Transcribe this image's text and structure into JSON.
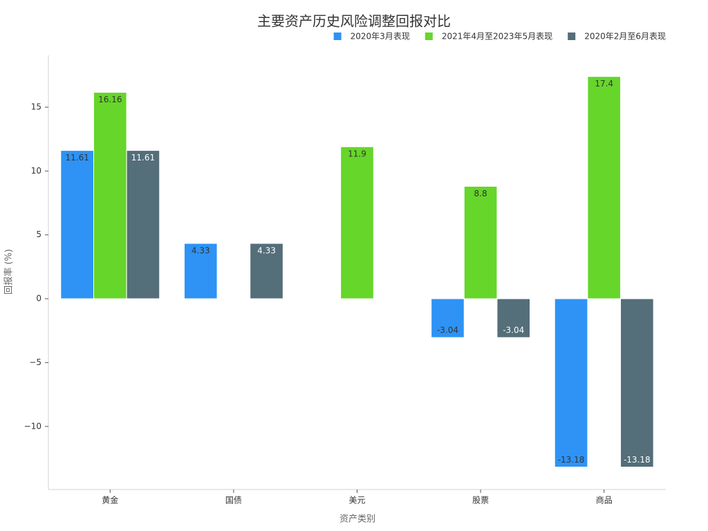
{
  "chart_data": {
    "type": "bar",
    "title": "主要资产历史风险调整回报对比",
    "x_label": "资产类别",
    "y_label": "回报率 (%)",
    "categories": [
      "黄金",
      "国债",
      "美元",
      "股票",
      "商品"
    ],
    "series": [
      {
        "name": "2020年3月表现",
        "color": "#2e93f5",
        "label_color": "#333333",
        "values": [
          11.61,
          4.33,
          null,
          -3.04,
          -13.18
        ]
      },
      {
        "name": "2021年4月至2023年5月表现",
        "color": "#66d62a",
        "label_color": "#333333",
        "values": [
          16.16,
          null,
          11.9,
          8.8,
          17.4
        ]
      },
      {
        "name": "2020年2月至6月表现",
        "color": "#546e7a",
        "label_color": "#ffffff",
        "values": [
          11.61,
          4.33,
          null,
          -3.04,
          -13.18
        ]
      }
    ],
    "ylim": [
      -14.94,
      19.06
    ],
    "yticks": [
      {
        "value": -10,
        "label": "−10"
      },
      {
        "value": -5,
        "label": "−5"
      },
      0,
      5,
      10,
      15
    ],
    "grid": false,
    "legend": "top-right"
  }
}
